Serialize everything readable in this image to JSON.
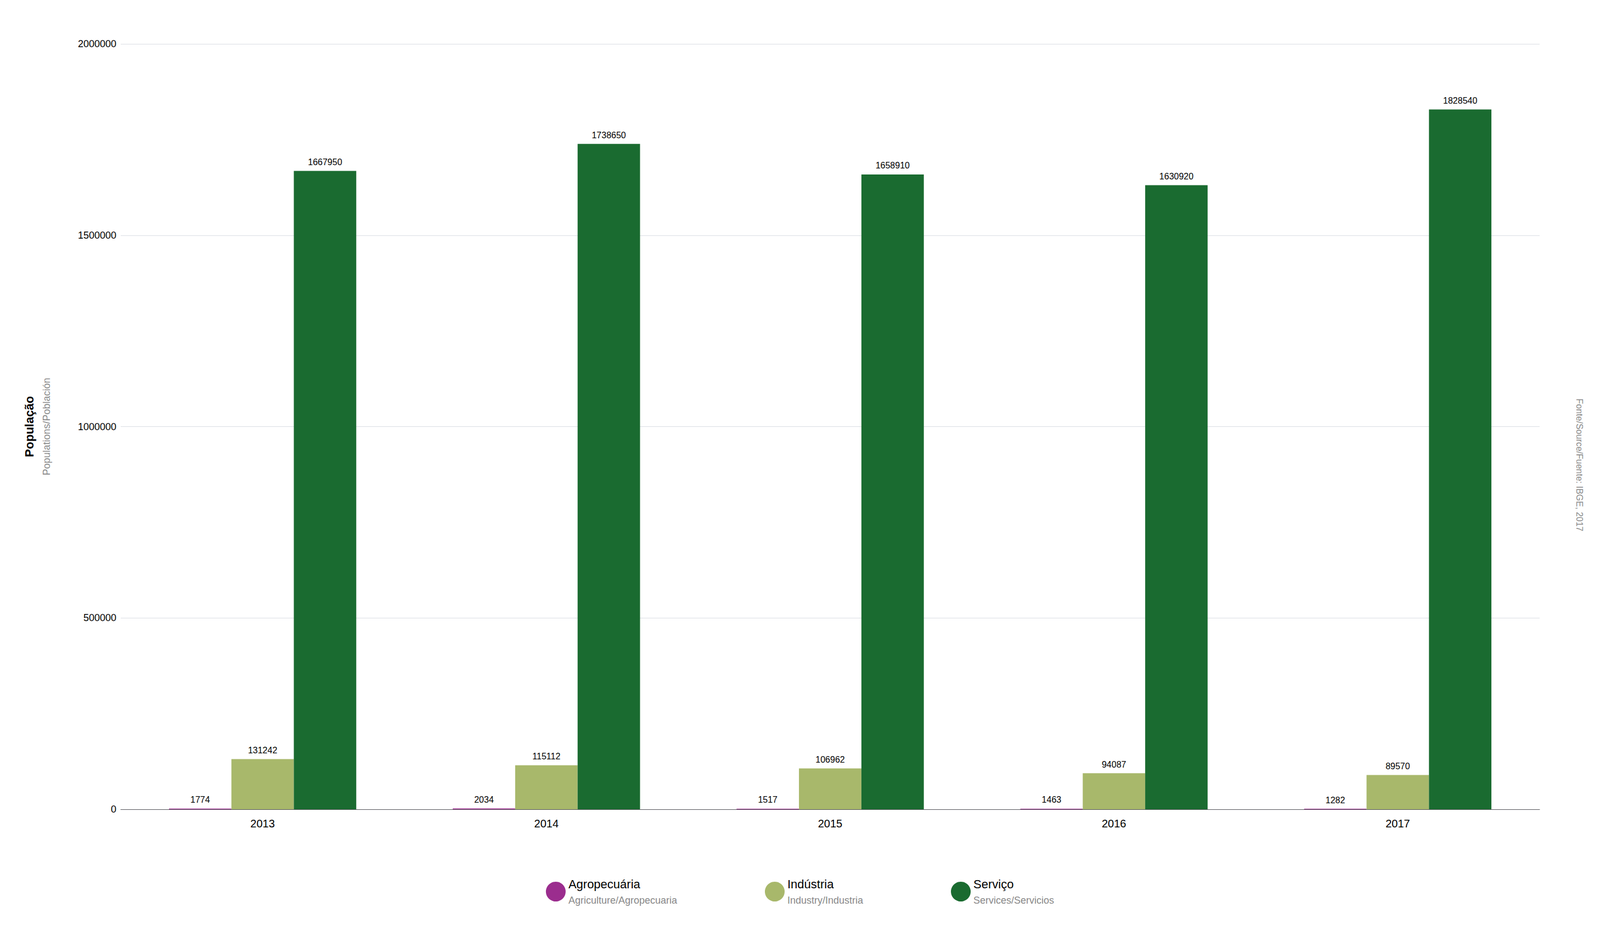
{
  "chart_data": {
    "type": "bar",
    "categories": [
      "2013",
      "2014",
      "2015",
      "2016",
      "2017"
    ],
    "series": [
      {
        "name": "Agropecuária",
        "color": "#9B2D8E",
        "values": [
          1774,
          2034,
          1517,
          1463,
          1282
        ]
      },
      {
        "name": "Indústria",
        "color": "#A8B86B",
        "values": [
          131242,
          115112,
          106962,
          94087,
          89570
        ]
      },
      {
        "name": "Serviço",
        "color": "#1A6B30",
        "values": [
          1667950,
          1738650,
          1658910,
          1630920,
          1828540
        ]
      }
    ],
    "ylabel": [
      "População",
      "Populations/Población"
    ],
    "annotations": [
      {
        "text": "Agriculture/Agropecuaria",
        "series": "Agropecuária"
      },
      {
        "text": "Industry/Industria",
        "series": "Indústria"
      },
      {
        "text": "Services/Servicios",
        "series": "Serviço"
      },
      {
        "text": "Fonte/Source/Fuente: IBGE, 2017"
      }
    ],
    "ylim": [
      0,
      2000000
    ],
    "yticks": [
      0,
      500000,
      1000000,
      1500000,
      2000000
    ],
    "grid": true,
    "legend": "bottom",
    "data_labels": true
  }
}
